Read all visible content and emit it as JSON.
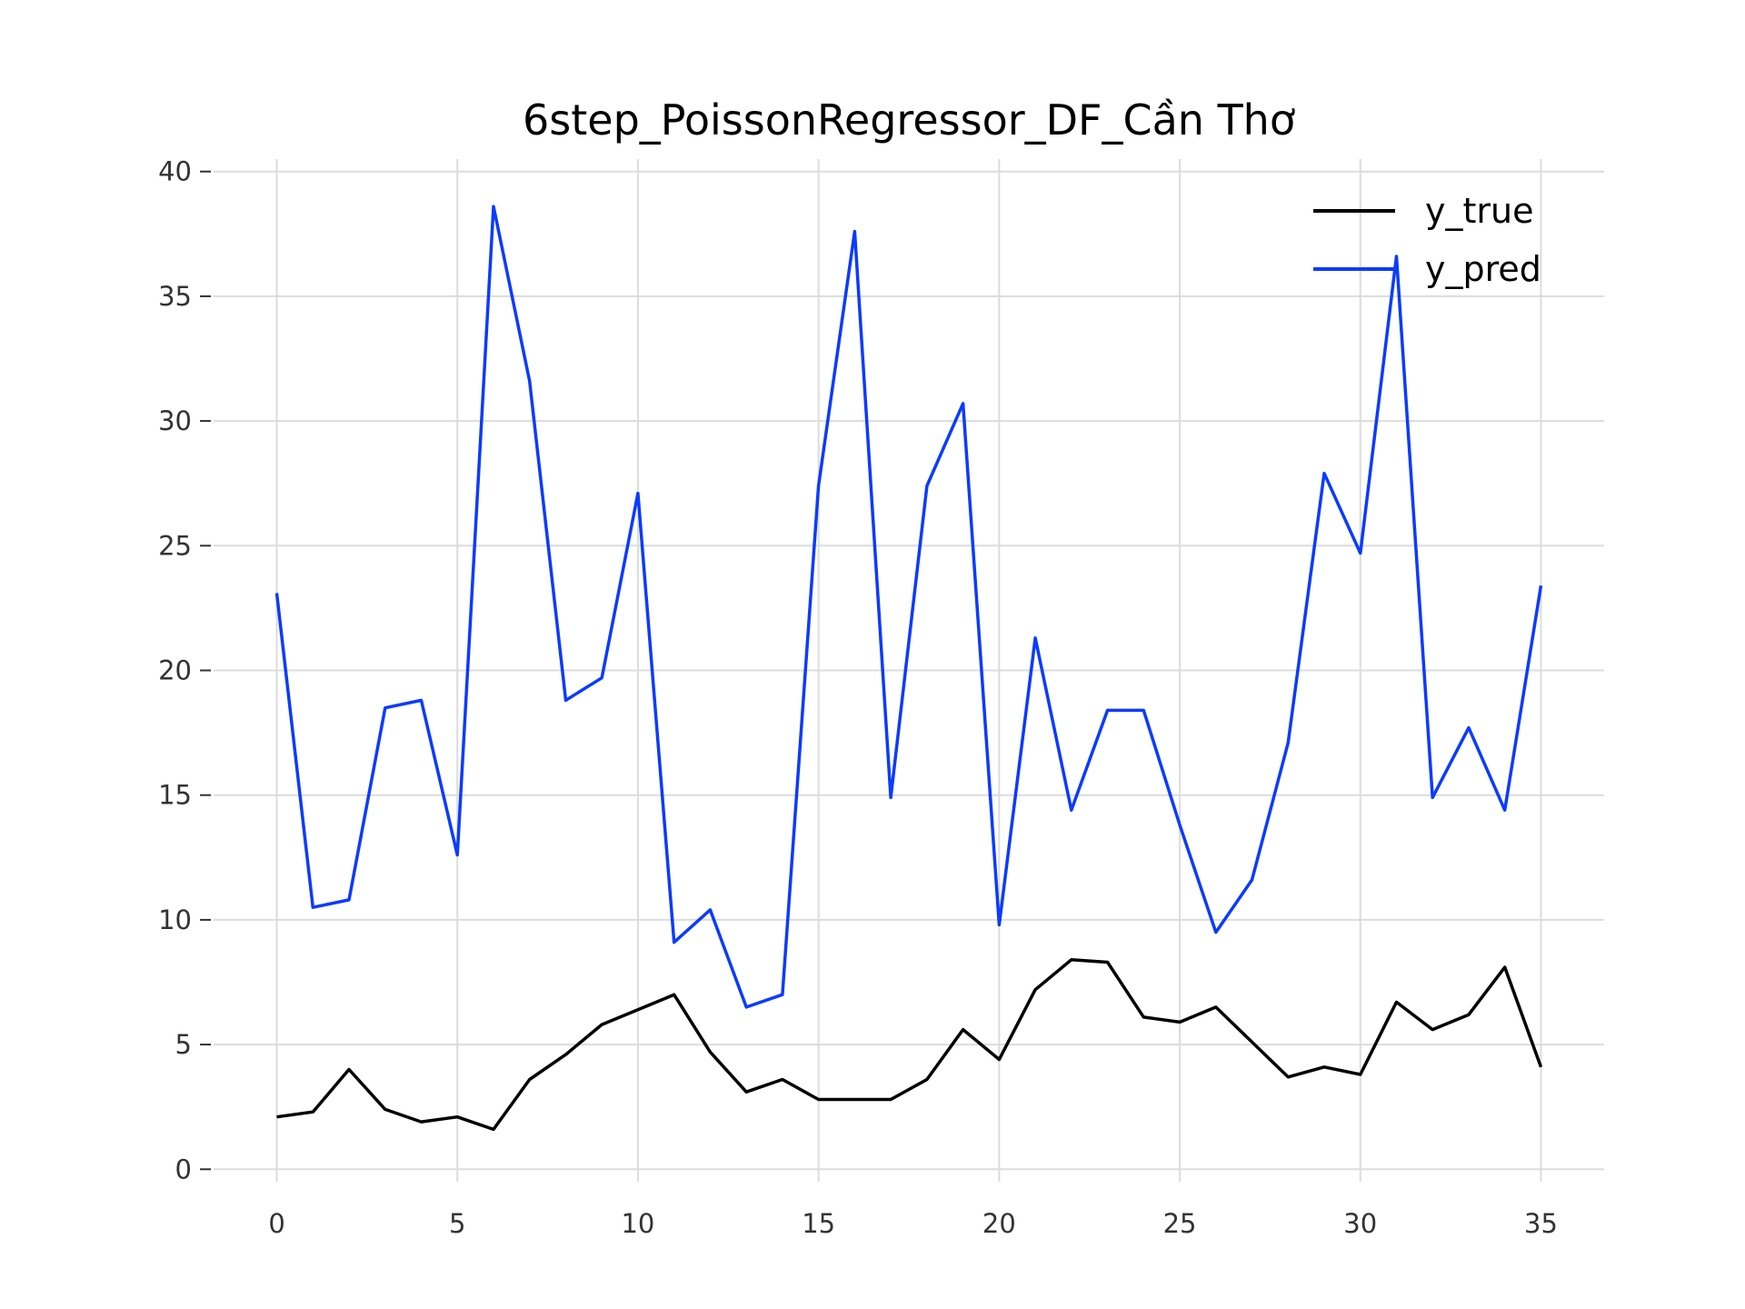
{
  "chart_data": {
    "type": "line",
    "title": "6step_PoissonRegressor_DF_Cần Thơ",
    "xlabel": "",
    "ylabel": "",
    "xlim": [
      -1.75,
      36.75
    ],
    "ylim": [
      -0.5,
      40.5
    ],
    "xticks": [
      0,
      5,
      10,
      15,
      20,
      25,
      30,
      35
    ],
    "yticks": [
      0,
      5,
      10,
      15,
      20,
      25,
      30,
      35,
      40
    ],
    "grid": true,
    "legend_position": "top-right",
    "x": [
      0,
      1,
      2,
      3,
      4,
      5,
      6,
      7,
      8,
      9,
      10,
      11,
      12,
      13,
      14,
      15,
      16,
      17,
      18,
      19,
      20,
      21,
      22,
      23,
      24,
      25,
      26,
      27,
      28,
      29,
      30,
      31,
      32,
      33,
      34,
      35
    ],
    "series": [
      {
        "name": "y_true",
        "color": "#000000",
        "values": [
          2.1,
          2.3,
          4.0,
          2.4,
          1.9,
          2.1,
          1.6,
          3.6,
          4.6,
          5.8,
          6.4,
          7.0,
          4.7,
          3.1,
          3.6,
          2.8,
          2.8,
          2.8,
          3.6,
          5.6,
          4.4,
          7.2,
          8.4,
          8.3,
          6.1,
          5.9,
          6.5,
          5.1,
          3.7,
          4.1,
          3.8,
          6.7,
          5.6,
          6.2,
          8.1,
          4.1
        ]
      },
      {
        "name": "y_pred",
        "color": "#0b3bff",
        "values": [
          23.1,
          10.5,
          10.8,
          18.5,
          18.8,
          12.6,
          38.6,
          31.6,
          18.8,
          19.7,
          27.1,
          9.1,
          10.4,
          6.5,
          7.0,
          27.4,
          37.6,
          14.9,
          27.4,
          30.7,
          9.8,
          21.3,
          14.4,
          18.4,
          18.4,
          13.8,
          9.5,
          11.6,
          17.1,
          27.9,
          24.7,
          36.6,
          14.9,
          17.7,
          14.4,
          23.4
        ]
      }
    ]
  }
}
